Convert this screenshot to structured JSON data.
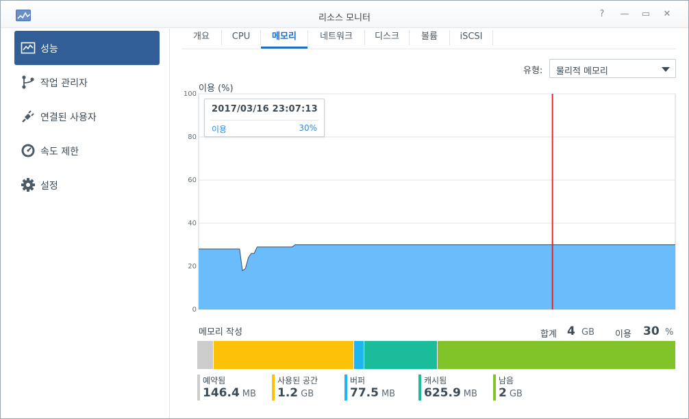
{
  "window": {
    "title": "리소스 모니터",
    "controls": [
      "?",
      "—",
      "▭",
      "✕"
    ]
  },
  "sidebar": {
    "items": [
      {
        "label": "성능",
        "icon": "performance-chart-icon",
        "active": true
      },
      {
        "label": "작업 관리자",
        "icon": "task-manager-icon",
        "active": false
      },
      {
        "label": "연결된 사용자",
        "icon": "plug-icon",
        "active": false
      },
      {
        "label": "속도 제한",
        "icon": "speedometer-icon",
        "active": false
      },
      {
        "label": "설정",
        "icon": "gear-icon",
        "active": false
      }
    ]
  },
  "tabs": [
    {
      "label": "개요",
      "active": false
    },
    {
      "label": "CPU",
      "active": false
    },
    {
      "label": "메모리",
      "active": true
    },
    {
      "label": "네트워크",
      "active": false
    },
    {
      "label": "디스크",
      "active": false
    },
    {
      "label": "볼륨",
      "active": false
    },
    {
      "label": "iSCSI",
      "active": false
    }
  ],
  "type_selector": {
    "label": "유형:",
    "value": "물리적 메모리"
  },
  "chart_data": {
    "type": "area",
    "title": "이용 (%)",
    "ylim": [
      0,
      100
    ],
    "yticks": [
      "0",
      "20",
      "40",
      "60",
      "80",
      "100"
    ],
    "grid": true,
    "series": [
      {
        "values": [
          28,
          28,
          28,
          28,
          28,
          28,
          28,
          28,
          28,
          28,
          28,
          28,
          28,
          28,
          28,
          18,
          19,
          24,
          26,
          26,
          29,
          29,
          29,
          29,
          29,
          29,
          29,
          29,
          29,
          29,
          29,
          29,
          29,
          30,
          30,
          30,
          30,
          30,
          30,
          30,
          30,
          30,
          30,
          30,
          30,
          30,
          30,
          30,
          30,
          30,
          30,
          30,
          30,
          30,
          30,
          30,
          30,
          30,
          30,
          30,
          30,
          30,
          30,
          30,
          30,
          30,
          30,
          30,
          30,
          30,
          30,
          30,
          30,
          30,
          30,
          30,
          30,
          30,
          30,
          30,
          30,
          30,
          30,
          30,
          30,
          30,
          30,
          30,
          30,
          30,
          30,
          30,
          30,
          30,
          30,
          30,
          30,
          30,
          30,
          30,
          30,
          30,
          30,
          30,
          30,
          30,
          30,
          30,
          30,
          30,
          30,
          30,
          30,
          30,
          30,
          30,
          30,
          30,
          30,
          30,
          30,
          30,
          30,
          30,
          30,
          30,
          30,
          30,
          30,
          30,
          30,
          30,
          30,
          30,
          30,
          30,
          30,
          30,
          30,
          30,
          30,
          30,
          30,
          30,
          30,
          30,
          30,
          30,
          30,
          30,
          30,
          30,
          30,
          30,
          30,
          30,
          30,
          30,
          30,
          30,
          30,
          30,
          30,
          30
        ]
      }
    ],
    "cursor_index": 121,
    "colors": {
      "fill": "#6bbcfb",
      "line": "#3a4d63",
      "cursor": "#e0262a",
      "grid": "#dfe3e7",
      "border": "#c9d0d6"
    },
    "tooltip": {
      "date": "2017/03/16 23:07:13",
      "label": "이용",
      "value": "30%"
    }
  },
  "composition": {
    "title": "메모리 작성",
    "total_label": "합계",
    "total_value": "4",
    "total_unit": "GB",
    "usage_label": "이용",
    "usage_value": "30",
    "usage_unit": "%",
    "segments": [
      {
        "name": "예약됨",
        "value": "146.4",
        "unit": "MB",
        "share": 3.5,
        "color": "#cccccc"
      },
      {
        "name": "사용된 공간",
        "value": "1.2",
        "unit": "GB",
        "share": 29.3,
        "color": "#fdc10a"
      },
      {
        "name": "버퍼",
        "value": "77.5",
        "unit": "MB",
        "share": 2.1,
        "color": "#1fb6f0"
      },
      {
        "name": "캐시됨",
        "value": "625.9",
        "unit": "MB",
        "share": 15.3,
        "color": "#1abc9c"
      },
      {
        "name": "남음",
        "value": "2",
        "unit": "GB",
        "share": 49.8,
        "color": "#80c42a"
      }
    ]
  }
}
